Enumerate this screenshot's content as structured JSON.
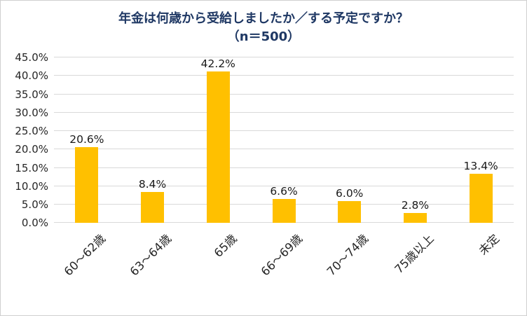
{
  "chart_data": {
    "type": "bar",
    "title": "年金は何歳から受給しましたか／する予定ですか？",
    "subtitle": "（n＝500）",
    "categories": [
      "60～62歳",
      "63～64歳",
      "65歳",
      "66～69歳",
      "70～74歳",
      "75歳以上",
      "未定"
    ],
    "values": [
      20.6,
      8.4,
      42.2,
      6.6,
      6.0,
      2.8,
      13.4
    ],
    "value_labels": [
      "20.6%",
      "8.4%",
      "42.2%",
      "6.6%",
      "6.0%",
      "2.8%",
      "13.4%"
    ],
    "ylim": [
      0,
      45
    ],
    "yticks": [
      "0.0%",
      "5.0%",
      "10.0%",
      "15.0%",
      "20.0%",
      "25.0%",
      "30.0%",
      "35.0%",
      "40.0%",
      "45.0%"
    ],
    "grid": true,
    "legend": "none",
    "bar_color": "#FFC000",
    "title_color": "#1F3864",
    "gridline_color": "#D9D9D9",
    "label_color": "#262626"
  }
}
